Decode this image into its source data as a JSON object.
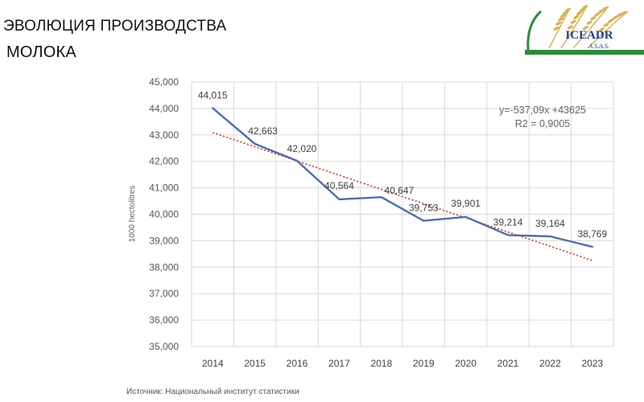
{
  "header": {
    "title_line1": "ЭВОЛЮЦИЯ ПРОИЗВОДСТВА",
    "title_line2": "МОЛОКА"
  },
  "logo": {
    "text": "ICEADR",
    "subtext": "A.S.A.S.",
    "icon": "wheat-ears-icon",
    "colors": {
      "text": "#1f3f8f",
      "wheat": "#d9b15a",
      "stripe": "#2e8b3a"
    }
  },
  "chart_data": {
    "type": "line",
    "title": "",
    "xlabel": "",
    "ylabel": "1000 hectolitres",
    "x": [
      "2014",
      "2015",
      "2016",
      "2017",
      "2018",
      "2019",
      "2020",
      "2021",
      "2022",
      "2023"
    ],
    "series": [
      {
        "values": [
          44015,
          42663,
          42020,
          40564,
          40647,
          39753,
          39901,
          39214,
          39164,
          38769
        ],
        "color": "#4e6fa8"
      }
    ],
    "data_labels": [
      "44,015",
      "42,663",
      "42,020",
      "40,564",
      "40,647",
      "39,753",
      "39,901",
      "39,214",
      "39,164",
      "38,769"
    ],
    "trendline": {
      "type": "linear",
      "equation": "y=-537,09x +43625",
      "r2": "R2 = 0,9005",
      "slope": -537.09,
      "intercept": 43625,
      "color": "#c0392b",
      "style": "dotted"
    },
    "ylim": [
      35000,
      45000
    ],
    "yticks": [
      35000,
      36000,
      37000,
      38000,
      39000,
      40000,
      41000,
      42000,
      43000,
      44000,
      45000
    ],
    "ytick_labels": [
      "35,000",
      "36,000",
      "37,000",
      "38,000",
      "39,000",
      "40,000",
      "41,000",
      "42,000",
      "43,000",
      "44,000",
      "45,000"
    ],
    "grid": true,
    "legend": "none"
  },
  "footer": {
    "source": "Источник: Национальный институт статистики"
  }
}
